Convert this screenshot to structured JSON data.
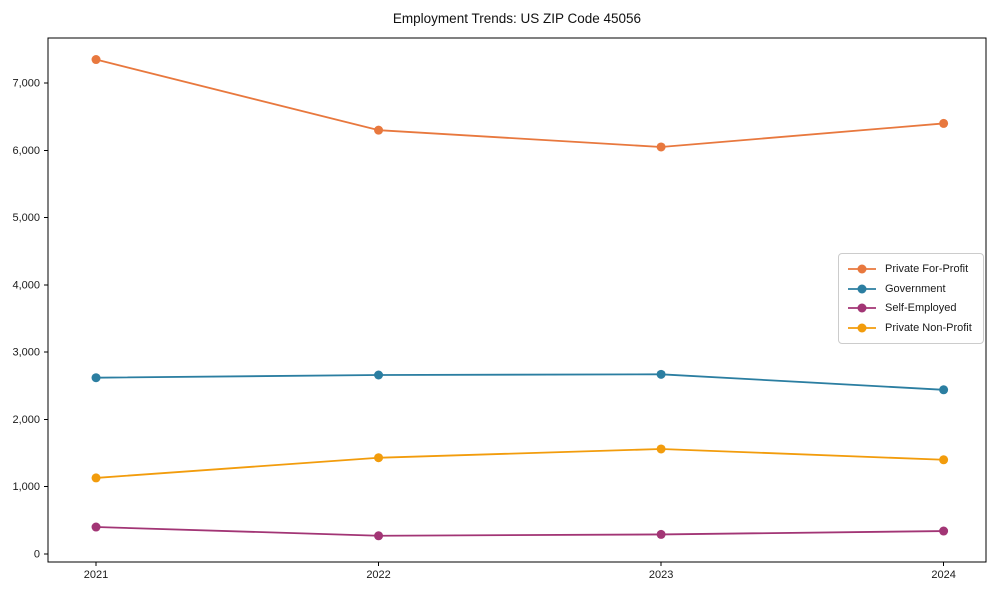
{
  "figure": {
    "title": "Employment Trends: US ZIP Code 45056"
  },
  "chart_data": {
    "type": "line",
    "title": "Employment Trends: US ZIP Code 45056",
    "xlabel": "",
    "ylabel": "",
    "categories": [
      "2021",
      "2022",
      "2023",
      "2024"
    ],
    "series": [
      {
        "name": "Private For-Profit",
        "color": "#e8783e",
        "values": [
          7350,
          6300,
          6050,
          6400
        ]
      },
      {
        "name": "Government",
        "color": "#2b7ea1",
        "values": [
          2620,
          2660,
          2670,
          2440
        ]
      },
      {
        "name": "Self-Employed",
        "color": "#a23575",
        "values": [
          400,
          270,
          290,
          340
        ]
      },
      {
        "name": "Private Non-Profit",
        "color": "#f29c0c",
        "values": [
          1130,
          1430,
          1560,
          1400
        ]
      }
    ],
    "yticks": [
      0,
      1000,
      2000,
      3000,
      4000,
      5000,
      6000,
      7000
    ],
    "ytick_labels": [
      "0",
      "1,000",
      "2,000",
      "3,000",
      "4,000",
      "5,000",
      "6,000",
      "7,000"
    ],
    "ylim": [
      -120,
      7670
    ],
    "xlim": [
      -0.17,
      3.15
    ],
    "grid": false,
    "legend_position": "center right"
  }
}
